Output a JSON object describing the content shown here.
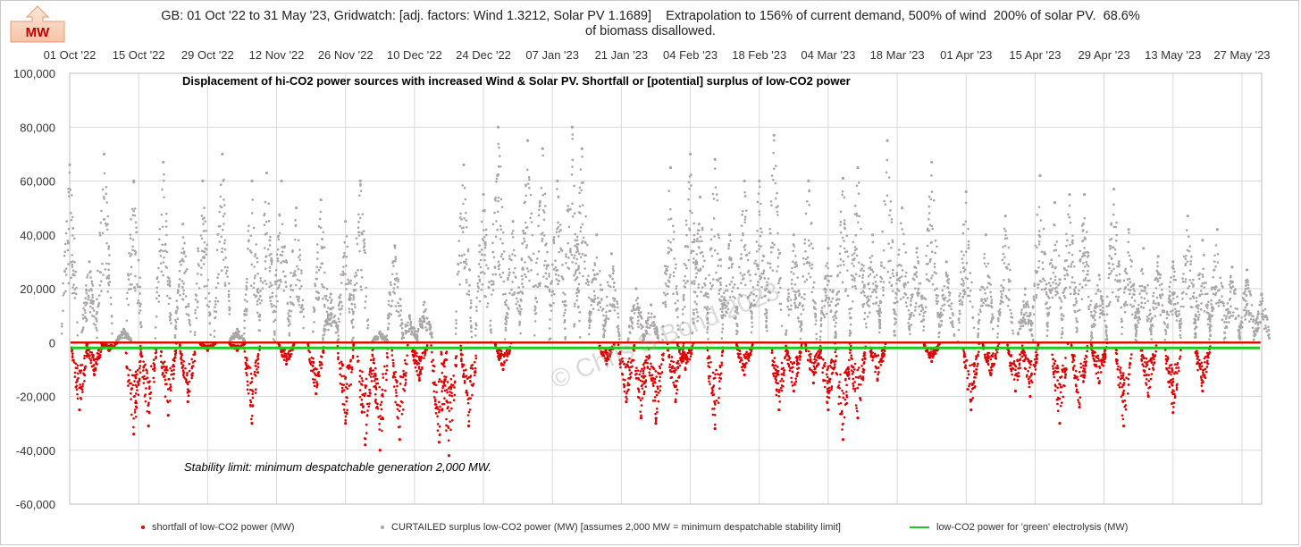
{
  "title_line1": "GB: 01 Oct '22 to 31 May '23, Gridwatch: [adj. factors: Wind 1.3212, Solar PV 1.1689]    Extrapolation to 156% of current demand, 500% of wind  200% of solar PV.  68.6%",
  "title_line2": "of biomass disallowed.",
  "unit_badge": "MW",
  "annotation_top": "Displacement of hi-CO2 power sources with increased Wind & Solar PV.  Shortfall or [potential] surplus of low-CO2 power",
  "annotation_bottom": "Stability limit: minimum despatchable generation 2,000 MW.",
  "watermark": "© Chris S Bond 2023",
  "colors": {
    "shortfall": "#e00000",
    "surplus": "#a9a6a6",
    "electrolysis": "#22c822",
    "grid": "#d9d9d9"
  },
  "chart_data": {
    "type": "scatter",
    "x_range": [
      "2022-10-01",
      "2023-05-31"
    ],
    "ylim": [
      -60000,
      100000
    ],
    "y_ticks": [
      "100,000",
      "80,000",
      "60,000",
      "40,000",
      "20,000",
      "0",
      "-20,000",
      "-40,000",
      "-60,000"
    ],
    "x_ticks": [
      "01 Oct '22",
      "15 Oct '22",
      "29 Oct '22",
      "12 Nov '22",
      "26 Nov '22",
      "10 Dec '22",
      "24 Dec '22",
      "07 Jan '23",
      "21 Jan '23",
      "04 Feb '23",
      "18 Feb '23",
      "04 Mar '23",
      "18 Mar '23",
      "01 Apr '23",
      "15 Apr '23",
      "29 Apr '23",
      "13 May '23",
      "27 May '23"
    ],
    "grid": true,
    "legend_position": "bottom",
    "series": [
      {
        "name": "shortfall of low-CO2 power (MW)",
        "baseline": 0,
        "x": [
          "2022-10-03",
          "2022-10-06",
          "2022-10-09",
          "2022-10-14",
          "2022-10-17",
          "2022-10-21",
          "2022-10-25",
          "2022-10-29",
          "2022-11-04",
          "2022-11-07",
          "2022-11-14",
          "2022-11-20",
          "2022-11-26",
          "2022-11-30",
          "2022-12-03",
          "2022-12-07",
          "2022-12-11",
          "2022-12-15",
          "2022-12-17",
          "2022-12-21",
          "2022-12-28",
          "2023-01-18",
          "2023-01-22",
          "2023-01-25",
          "2023-01-28",
          "2023-02-01",
          "2023-02-03",
          "2023-02-09",
          "2023-02-15",
          "2023-02-22",
          "2023-02-25",
          "2023-03-01",
          "2023-03-04",
          "2023-03-07",
          "2023-03-10",
          "2023-03-14",
          "2023-03-25",
          "2023-04-02",
          "2023-04-06",
          "2023-04-11",
          "2023-04-14",
          "2023-04-20",
          "2023-04-24",
          "2023-04-28",
          "2023-05-03",
          "2023-05-08",
          "2023-05-13",
          "2023-05-19"
        ],
        "y": [
          -25000,
          -12000,
          -3000,
          -34000,
          -31000,
          -27000,
          -22000,
          -3000,
          -3000,
          -30000,
          -8000,
          -19000,
          -30000,
          -38000,
          -40000,
          -36000,
          -14000,
          -37000,
          -42000,
          -31000,
          -10000,
          -8000,
          -22000,
          -28000,
          -30000,
          -22000,
          -10000,
          -32000,
          -12000,
          -25000,
          -18000,
          -15000,
          -25000,
          -36000,
          -28000,
          -14000,
          -7000,
          -25000,
          -12000,
          -18000,
          -20000,
          -30000,
          -24000,
          -15000,
          -31000,
          -20000,
          -26000,
          -18000
        ]
      },
      {
        "name": "CURTAILED surplus low-CO2 power (MW) [assumes 2,000 MW = minimum despatchable stability limit]",
        "x": [
          "2022-10-01",
          "2022-10-05",
          "2022-10-08",
          "2022-10-12",
          "2022-10-14",
          "2022-10-20",
          "2022-10-24",
          "2022-10-28",
          "2022-11-01",
          "2022-11-04",
          "2022-11-07",
          "2022-11-10",
          "2022-11-13",
          "2022-11-16",
          "2022-11-21",
          "2022-11-23",
          "2022-11-26",
          "2022-11-29",
          "2022-12-03",
          "2022-12-06",
          "2022-12-09",
          "2022-12-12",
          "2022-12-20",
          "2022-12-24",
          "2022-12-27",
          "2022-12-30",
          "2023-01-02",
          "2023-01-05",
          "2023-01-08",
          "2023-01-11",
          "2023-01-13",
          "2023-01-16",
          "2023-01-19",
          "2023-01-24",
          "2023-01-27",
          "2023-01-31",
          "2023-02-04",
          "2023-02-06",
          "2023-02-09",
          "2023-02-12",
          "2023-02-15",
          "2023-02-18",
          "2023-02-21",
          "2023-02-25",
          "2023-02-28",
          "2023-03-04",
          "2023-03-07",
          "2023-03-10",
          "2023-03-13",
          "2023-03-16",
          "2023-03-19",
          "2023-03-22",
          "2023-03-25",
          "2023-03-28",
          "2023-04-01",
          "2023-04-05",
          "2023-04-09",
          "2023-04-13",
          "2023-04-16",
          "2023-04-19",
          "2023-04-22",
          "2023-04-25",
          "2023-04-28",
          "2023-05-01",
          "2023-05-04",
          "2023-05-07",
          "2023-05-10",
          "2023-05-13",
          "2023-05-16",
          "2023-05-19",
          "2023-05-22",
          "2023-05-25",
          "2023-05-28",
          "2023-05-31"
        ],
        "y": [
          66000,
          30000,
          70000,
          5000,
          60000,
          67000,
          44000,
          60000,
          70000,
          5000,
          60000,
          63000,
          60000,
          50000,
          53000,
          18000,
          45000,
          60000,
          4000,
          36000,
          10000,
          15000,
          66000,
          55000,
          80000,
          45000,
          75000,
          72000,
          60000,
          80000,
          72000,
          40000,
          33000,
          20000,
          14000,
          65000,
          70000,
          54000,
          68000,
          40000,
          60000,
          60000,
          77000,
          40000,
          60000,
          35000,
          61000,
          65000,
          40000,
          75000,
          50000,
          35000,
          67000,
          30000,
          56000,
          40000,
          47000,
          20000,
          62000,
          52000,
          55000,
          55000,
          25000,
          57000,
          42000,
          35000,
          32000,
          30000,
          47000,
          38000,
          42000,
          28000,
          27000,
          18000
        ]
      },
      {
        "name": "low-CO2 power for 'green' electrolysis (MW)",
        "constant": -2000
      }
    ]
  }
}
